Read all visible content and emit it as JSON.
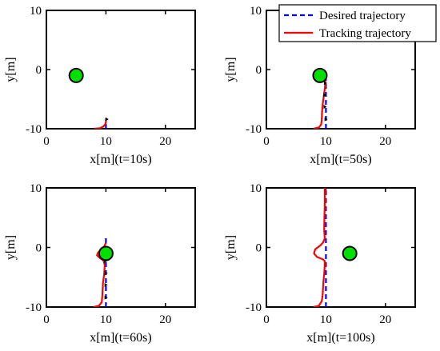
{
  "chart_data": [
    {
      "type": "line",
      "xlabel": "x[m](t=10s)",
      "ylabel": "y[m]",
      "xlim": [
        0,
        25
      ],
      "ylim": [
        -10,
        10
      ],
      "xticks": [
        0,
        10,
        20
      ],
      "yticks": [
        -10,
        0,
        10
      ],
      "series": [
        {
          "name": "Desired trajectory",
          "color": "#0000ff",
          "style": "dashed",
          "x": [
            10,
            10
          ],
          "y": [
            -10,
            -8.6
          ]
        },
        {
          "name": "Tracking trajectory",
          "color": "#ff0000",
          "style": "solid",
          "x": [
            8.0,
            9.0,
            9.6,
            9.9,
            10.0,
            10.0,
            10.05
          ],
          "y": [
            -10.0,
            -9.9,
            -9.6,
            -9.2,
            -8.8,
            -8.5,
            -8.3
          ]
        }
      ],
      "marker": {
        "x": 5,
        "y": -1,
        "color": "#00e000"
      },
      "arrows": [
        {
          "x": 10.05,
          "y": -8.4
        }
      ]
    },
    {
      "type": "line",
      "xlabel": "x[m](t=50s)",
      "ylabel": "y[m]",
      "xlim": [
        0,
        25
      ],
      "ylim": [
        -10,
        10
      ],
      "xticks": [
        0,
        10,
        20
      ],
      "yticks": [
        -10,
        0,
        10
      ],
      "legend": {
        "location": "top-right",
        "entries": [
          "Desired trajectory",
          "Tracking trajectory"
        ]
      },
      "series": [
        {
          "name": "Desired trajectory",
          "color": "#0000ff",
          "style": "dashed",
          "x": [
            10,
            10
          ],
          "y": [
            -10,
            -1
          ]
        },
        {
          "name": "Tracking trajectory",
          "color": "#ff0000",
          "style": "solid",
          "x": [
            7.9,
            8.8,
            9.2,
            9.3,
            9.35,
            9.5,
            9.7,
            9.9,
            9.9,
            9.5,
            9.0
          ],
          "y": [
            -10.0,
            -9.8,
            -9.3,
            -8.5,
            -7.0,
            -5.5,
            -4.0,
            -2.5,
            -1.5,
            -1.1,
            -1.0
          ]
        }
      ],
      "marker": {
        "x": 9,
        "y": -1,
        "color": "#00e000"
      },
      "arrows": [
        {
          "x": 9.9,
          "y": -8.4
        },
        {
          "x": 9.75,
          "y": -6.3
        },
        {
          "x": 9.7,
          "y": -4.3
        },
        {
          "x": 9.8,
          "y": -2.3
        }
      ]
    },
    {
      "type": "line",
      "xlabel": "x[m](t=60s)",
      "ylabel": "y[m]",
      "xlim": [
        0,
        25
      ],
      "ylim": [
        -10,
        10
      ],
      "xticks": [
        0,
        10,
        20
      ],
      "yticks": [
        -10,
        0,
        10
      ],
      "series": [
        {
          "name": "Desired trajectory",
          "color": "#0000ff",
          "style": "dashed",
          "x": [
            10,
            10
          ],
          "y": [
            -10,
            2
          ]
        },
        {
          "name": "Tracking trajectory",
          "color": "#ff0000",
          "style": "solid",
          "x": [
            7.9,
            8.8,
            9.3,
            9.4,
            9.5,
            9.7,
            9.8,
            9.6,
            9.0,
            8.5,
            8.7,
            9.5,
            10.0
          ],
          "y": [
            -10.0,
            -9.8,
            -9.2,
            -8.0,
            -6.0,
            -4.5,
            -3.0,
            -2.2,
            -1.8,
            -1.3,
            -0.8,
            -0.3,
            0.8
          ]
        }
      ],
      "marker": {
        "x": 10,
        "y": -1,
        "color": "#00e000"
      },
      "arrows": [
        {
          "x": 9.9,
          "y": -8.4
        },
        {
          "x": 9.9,
          "y": -6.3
        },
        {
          "x": 9.9,
          "y": -4.3
        },
        {
          "x": 9.8,
          "y": -2.3
        }
      ]
    },
    {
      "type": "line",
      "xlabel": "x[m](t=100s)",
      "ylabel": "y[m]",
      "xlim": [
        0,
        25
      ],
      "ylim": [
        -10,
        10
      ],
      "xticks": [
        0,
        10,
        20
      ],
      "yticks": [
        -10,
        0,
        10
      ],
      "series": [
        {
          "name": "Desired trajectory",
          "color": "#0000ff",
          "style": "dashed",
          "x": [
            10,
            10
          ],
          "y": [
            -10,
            10
          ]
        },
        {
          "name": "Tracking trajectory",
          "color": "#ff0000",
          "style": "solid",
          "x": [
            7.9,
            8.8,
            9.3,
            9.45,
            9.55,
            9.7,
            9.8,
            9.8,
            9.5,
            8.5,
            8.0,
            8.2,
            9.0,
            9.5,
            9.8,
            9.7,
            9.75,
            9.8,
            9.8
          ],
          "y": [
            -10.0,
            -9.8,
            -9.0,
            -8.0,
            -6.0,
            -4.5,
            -3.0,
            -2.3,
            -2.0,
            -1.6,
            -1.0,
            -0.3,
            0.3,
            0.8,
            1.5,
            3.0,
            5.0,
            7.0,
            10.0
          ]
        }
      ],
      "marker": {
        "x": 14,
        "y": -1,
        "color": "#00e000"
      },
      "arrows": []
    }
  ]
}
